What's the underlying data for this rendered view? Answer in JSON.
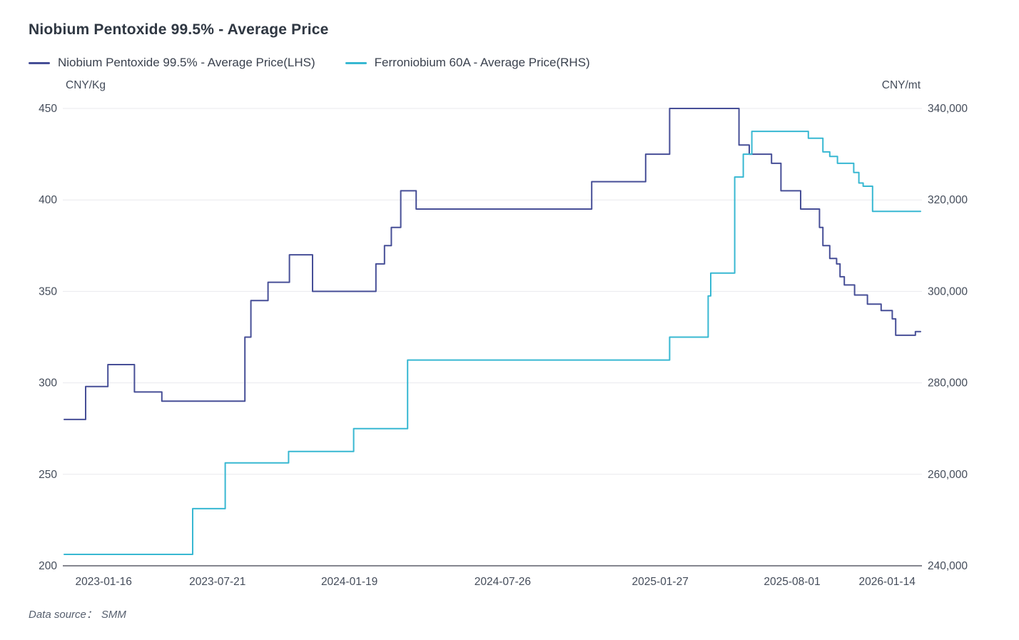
{
  "title": "Niobium Pentoxide 99.5% - Average Price",
  "legend": [
    {
      "label": "Niobium Pentoxide 99.5% - Average Price(LHS)",
      "color": "#474f97"
    },
    {
      "label": "Ferroniobium 60A - Average Price(RHS)",
      "color": "#38b8d2"
    }
  ],
  "footer": {
    "prefix": "Data source：",
    "source": "SMM"
  },
  "colors": {
    "lhs_line": "#474f97",
    "rhs_line": "#38b8d2",
    "grid": "#e9e9ee",
    "axis_line": "#85868f",
    "axis_text": "#444c5a"
  },
  "chart_data": {
    "type": "line",
    "style": "step-after",
    "title": "Niobium Pentoxide 99.5% - Average Price",
    "grid": true,
    "legend_position": "top-left",
    "left_axis": {
      "unit": "CNY/Kg",
      "min": 200,
      "max": 450,
      "ticks": [
        200,
        250,
        300,
        350,
        400,
        450
      ]
    },
    "right_axis": {
      "unit": "CNY/mt",
      "min": 240000,
      "max": 340000,
      "ticks": [
        240000,
        260000,
        280000,
        300000,
        320000,
        340000
      ]
    },
    "x_ticks": [
      {
        "label": "2023-01-16",
        "pos": 0.046
      },
      {
        "label": "2023-07-21",
        "pos": 0.179
      },
      {
        "label": "2024-01-19",
        "pos": 0.333
      },
      {
        "label": "2024-07-26",
        "pos": 0.512
      },
      {
        "label": "2025-01-27",
        "pos": 0.696
      },
      {
        "label": "2025-08-01",
        "pos": 0.85
      },
      {
        "label": "2026-01-14",
        "pos": 0.961
      }
    ],
    "series": [
      {
        "name": "Niobium Pentoxide 99.5% - Average Price(LHS)",
        "axis": "left",
        "color": "#474f97",
        "points": [
          [
            0.0,
            280
          ],
          [
            0.025,
            298
          ],
          [
            0.051,
            310
          ],
          [
            0.082,
            295
          ],
          [
            0.114,
            290
          ],
          [
            0.211,
            325
          ],
          [
            0.218,
            345
          ],
          [
            0.238,
            355
          ],
          [
            0.263,
            370
          ],
          [
            0.29,
            350
          ],
          [
            0.364,
            365
          ],
          [
            0.374,
            375
          ],
          [
            0.382,
            385
          ],
          [
            0.393,
            405
          ],
          [
            0.411,
            395
          ],
          [
            0.616,
            410
          ],
          [
            0.679,
            425
          ],
          [
            0.707,
            450
          ],
          [
            0.788,
            430
          ],
          [
            0.8,
            425
          ],
          [
            0.826,
            420
          ],
          [
            0.837,
            405
          ],
          [
            0.86,
            395
          ],
          [
            0.882,
            385
          ],
          [
            0.886,
            375
          ],
          [
            0.894,
            368
          ],
          [
            0.902,
            365
          ],
          [
            0.906,
            358
          ],
          [
            0.911,
            353.5
          ],
          [
            0.923,
            348
          ],
          [
            0.938,
            343
          ],
          [
            0.954,
            339.5
          ],
          [
            0.967,
            335
          ],
          [
            0.971,
            326
          ],
          [
            0.994,
            328
          ]
        ]
      },
      {
        "name": "Ferroniobium 60A - Average Price(RHS)",
        "axis": "right",
        "color": "#38b8d2",
        "points": [
          [
            0.0,
            242500
          ],
          [
            0.15,
            252500
          ],
          [
            0.188,
            262500
          ],
          [
            0.262,
            265000
          ],
          [
            0.338,
            270000
          ],
          [
            0.401,
            285000
          ],
          [
            0.707,
            290000
          ],
          [
            0.752,
            299000
          ],
          [
            0.755,
            304000
          ],
          [
            0.783,
            325000
          ],
          [
            0.793,
            330000
          ],
          [
            0.803,
            335000
          ],
          [
            0.869,
            333500
          ],
          [
            0.886,
            330500
          ],
          [
            0.894,
            329500
          ],
          [
            0.903,
            328000
          ],
          [
            0.922,
            326000
          ],
          [
            0.928,
            323700
          ],
          [
            0.933,
            323000
          ],
          [
            0.944,
            317500
          ]
        ]
      }
    ]
  }
}
